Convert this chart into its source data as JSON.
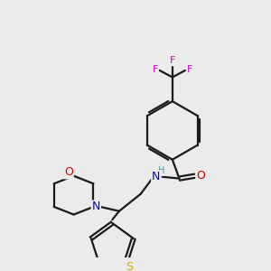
{
  "bg_color": "#ebebeb",
  "bond_color": "#1a1a1a",
  "atom_colors": {
    "F": "#cc00cc",
    "O": "#cc0000",
    "N": "#0000cc",
    "S": "#ccaa00",
    "H": "#559999",
    "C": "#1a1a1a"
  }
}
